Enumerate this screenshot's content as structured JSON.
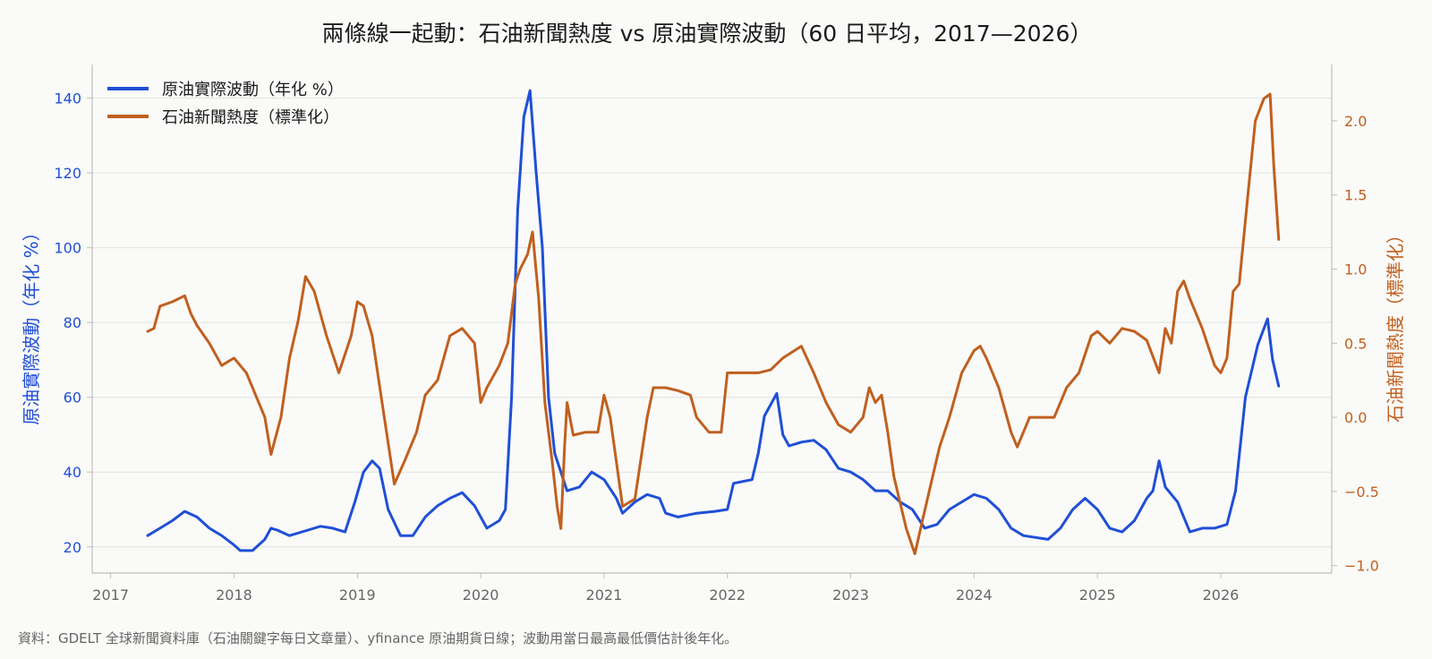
{
  "colors": {
    "volatility": "#1f4fd6",
    "news": "#c0601f",
    "grid": "#e2e2e2",
    "axis": "#bdbdbd",
    "background": "#fafaf8"
  },
  "chart_data": {
    "type": "line",
    "title": "兩條線一起動：石油新聞熱度 vs 原油實際波動（60 日平均，2017—2026）",
    "ylabel_left": "原油實際波動（年化 %）",
    "ylabel_right": "石油新聞熱度（標準化）",
    "source": "資料：GDELT 全球新聞資料庫（石油關鍵字每日文章量）、yfinance 原油期貨日線；波動用當日最高最低價估計後年化。",
    "x_ticks": [
      "2017",
      "2018",
      "2019",
      "2020",
      "2021",
      "2022",
      "2023",
      "2024",
      "2025",
      "2026"
    ],
    "xlim": [
      2016.85,
      2026.9
    ],
    "ylim_left": [
      13,
      149
    ],
    "yticks_left": [
      20,
      40,
      60,
      80,
      100,
      120,
      140
    ],
    "ylim_right": [
      -1.05,
      2.38
    ],
    "yticks_right": [
      "−1.0",
      "−0.5",
      "0.0",
      "0.5",
      "1.0",
      "1.5",
      "2.0"
    ],
    "yticks_right_values": [
      -1.0,
      -0.5,
      0.0,
      0.5,
      1.0,
      1.5,
      2.0
    ],
    "grid": "horizontal",
    "legend_position": "top-left",
    "series": [
      {
        "name": "原油實際波動（年化 %）",
        "axis": "left",
        "points": [
          [
            2017.3,
            23
          ],
          [
            2017.4,
            25
          ],
          [
            2017.5,
            27
          ],
          [
            2017.6,
            29.5
          ],
          [
            2017.7,
            28
          ],
          [
            2017.8,
            25
          ],
          [
            2017.9,
            23
          ],
          [
            2018.0,
            20.5
          ],
          [
            2018.05,
            19
          ],
          [
            2018.15,
            19
          ],
          [
            2018.25,
            22
          ],
          [
            2018.3,
            25
          ],
          [
            2018.35,
            24.5
          ],
          [
            2018.45,
            23
          ],
          [
            2018.6,
            24.5
          ],
          [
            2018.7,
            25.5
          ],
          [
            2018.8,
            25
          ],
          [
            2018.9,
            24
          ],
          [
            2018.98,
            32
          ],
          [
            2019.05,
            40
          ],
          [
            2019.12,
            43
          ],
          [
            2019.18,
            41
          ],
          [
            2019.25,
            30
          ],
          [
            2019.35,
            23
          ],
          [
            2019.45,
            23
          ],
          [
            2019.55,
            28
          ],
          [
            2019.65,
            31
          ],
          [
            2019.75,
            33
          ],
          [
            2019.85,
            34.5
          ],
          [
            2019.95,
            31
          ],
          [
            2020.05,
            25
          ],
          [
            2020.15,
            27
          ],
          [
            2020.2,
            30
          ],
          [
            2020.25,
            60
          ],
          [
            2020.3,
            110
          ],
          [
            2020.35,
            135
          ],
          [
            2020.4,
            142
          ],
          [
            2020.45,
            120
          ],
          [
            2020.5,
            100
          ],
          [
            2020.55,
            60
          ],
          [
            2020.6,
            45
          ],
          [
            2020.7,
            35
          ],
          [
            2020.8,
            36
          ],
          [
            2020.9,
            40
          ],
          [
            2021.0,
            38
          ],
          [
            2021.1,
            33
          ],
          [
            2021.15,
            29
          ],
          [
            2021.25,
            32
          ],
          [
            2021.35,
            34
          ],
          [
            2021.45,
            33
          ],
          [
            2021.5,
            29
          ],
          [
            2021.6,
            28
          ],
          [
            2021.75,
            29
          ],
          [
            2021.9,
            29.5
          ],
          [
            2022.0,
            30
          ],
          [
            2022.05,
            37
          ],
          [
            2022.2,
            38
          ],
          [
            2022.25,
            45
          ],
          [
            2022.3,
            55
          ],
          [
            2022.4,
            61
          ],
          [
            2022.45,
            50
          ],
          [
            2022.5,
            47
          ],
          [
            2022.6,
            48
          ],
          [
            2022.7,
            48.5
          ],
          [
            2022.8,
            46
          ],
          [
            2022.9,
            41
          ],
          [
            2023.0,
            40
          ],
          [
            2023.1,
            38
          ],
          [
            2023.2,
            35
          ],
          [
            2023.3,
            35
          ],
          [
            2023.4,
            32
          ],
          [
            2023.5,
            30
          ],
          [
            2023.6,
            25
          ],
          [
            2023.7,
            26
          ],
          [
            2023.8,
            30
          ],
          [
            2023.9,
            32
          ],
          [
            2024.0,
            34
          ],
          [
            2024.1,
            33
          ],
          [
            2024.2,
            30
          ],
          [
            2024.3,
            25
          ],
          [
            2024.4,
            23
          ],
          [
            2024.5,
            22.5
          ],
          [
            2024.6,
            22
          ],
          [
            2024.7,
            25
          ],
          [
            2024.8,
            30
          ],
          [
            2024.9,
            33
          ],
          [
            2025.0,
            30
          ],
          [
            2025.1,
            25
          ],
          [
            2025.2,
            24
          ],
          [
            2025.3,
            27
          ],
          [
            2025.4,
            33
          ],
          [
            2025.45,
            35
          ],
          [
            2025.5,
            43
          ],
          [
            2025.55,
            36
          ],
          [
            2025.65,
            32
          ],
          [
            2025.7,
            28
          ],
          [
            2025.75,
            24
          ],
          [
            2025.85,
            25
          ],
          [
            2025.95,
            25
          ],
          [
            2026.05,
            26
          ],
          [
            2026.12,
            35
          ],
          [
            2026.2,
            60
          ],
          [
            2026.3,
            74
          ],
          [
            2026.38,
            81
          ],
          [
            2026.42,
            70
          ],
          [
            2026.47,
            63
          ]
        ]
      },
      {
        "name": "石油新聞熱度（標準化）",
        "axis": "right",
        "points": [
          [
            2017.3,
            0.58
          ],
          [
            2017.35,
            0.6
          ],
          [
            2017.4,
            0.75
          ],
          [
            2017.5,
            0.78
          ],
          [
            2017.6,
            0.82
          ],
          [
            2017.65,
            0.7
          ],
          [
            2017.7,
            0.62
          ],
          [
            2017.8,
            0.5
          ],
          [
            2017.9,
            0.35
          ],
          [
            2018.0,
            0.4
          ],
          [
            2018.1,
            0.3
          ],
          [
            2018.15,
            0.2
          ],
          [
            2018.25,
            0.0
          ],
          [
            2018.3,
            -0.25
          ],
          [
            2018.38,
            0.0
          ],
          [
            2018.45,
            0.4
          ],
          [
            2018.52,
            0.65
          ],
          [
            2018.58,
            0.95
          ],
          [
            2018.65,
            0.85
          ],
          [
            2018.75,
            0.55
          ],
          [
            2018.85,
            0.3
          ],
          [
            2018.95,
            0.55
          ],
          [
            2019.0,
            0.78
          ],
          [
            2019.05,
            0.75
          ],
          [
            2019.12,
            0.55
          ],
          [
            2019.2,
            0.1
          ],
          [
            2019.3,
            -0.45
          ],
          [
            2019.38,
            -0.3
          ],
          [
            2019.48,
            -0.1
          ],
          [
            2019.55,
            0.15
          ],
          [
            2019.65,
            0.25
          ],
          [
            2019.75,
            0.55
          ],
          [
            2019.85,
            0.6
          ],
          [
            2019.95,
            0.5
          ],
          [
            2020.0,
            0.1
          ],
          [
            2020.05,
            0.2
          ],
          [
            2020.15,
            0.35
          ],
          [
            2020.22,
            0.5
          ],
          [
            2020.28,
            0.9
          ],
          [
            2020.32,
            1.0
          ],
          [
            2020.38,
            1.1
          ],
          [
            2020.42,
            1.25
          ],
          [
            2020.47,
            0.8
          ],
          [
            2020.52,
            0.1
          ],
          [
            2020.58,
            -0.3
          ],
          [
            2020.62,
            -0.6
          ],
          [
            2020.65,
            -0.75
          ],
          [
            2020.68,
            -0.2
          ],
          [
            2020.7,
            0.1
          ],
          [
            2020.75,
            -0.12
          ],
          [
            2020.85,
            -0.1
          ],
          [
            2020.95,
            -0.1
          ],
          [
            2021.0,
            0.15
          ],
          [
            2021.05,
            0.0
          ],
          [
            2021.1,
            -0.3
          ],
          [
            2021.15,
            -0.6
          ],
          [
            2021.25,
            -0.55
          ],
          [
            2021.35,
            0.0
          ],
          [
            2021.4,
            0.2
          ],
          [
            2021.5,
            0.2
          ],
          [
            2021.6,
            0.18
          ],
          [
            2021.7,
            0.15
          ],
          [
            2021.75,
            0.0
          ],
          [
            2021.85,
            -0.1
          ],
          [
            2021.95,
            -0.1
          ],
          [
            2022.0,
            0.3
          ],
          [
            2022.1,
            0.3
          ],
          [
            2022.25,
            0.3
          ],
          [
            2022.35,
            0.32
          ],
          [
            2022.45,
            0.4
          ],
          [
            2022.6,
            0.48
          ],
          [
            2022.7,
            0.3
          ],
          [
            2022.8,
            0.1
          ],
          [
            2022.9,
            -0.05
          ],
          [
            2023.0,
            -0.1
          ],
          [
            2023.1,
            0.0
          ],
          [
            2023.15,
            0.2
          ],
          [
            2023.2,
            0.1
          ],
          [
            2023.25,
            0.15
          ],
          [
            2023.3,
            -0.1
          ],
          [
            2023.35,
            -0.4
          ],
          [
            2023.45,
            -0.75
          ],
          [
            2023.52,
            -0.92
          ],
          [
            2023.58,
            -0.7
          ],
          [
            2023.65,
            -0.45
          ],
          [
            2023.72,
            -0.2
          ],
          [
            2023.8,
            0.0
          ],
          [
            2023.9,
            0.3
          ],
          [
            2024.0,
            0.45
          ],
          [
            2024.05,
            0.48
          ],
          [
            2024.1,
            0.4
          ],
          [
            2024.2,
            0.2
          ],
          [
            2024.3,
            -0.1
          ],
          [
            2024.35,
            -0.2
          ],
          [
            2024.45,
            0.0
          ],
          [
            2024.55,
            0.0
          ],
          [
            2024.65,
            0.0
          ],
          [
            2024.75,
            0.2
          ],
          [
            2024.85,
            0.3
          ],
          [
            2024.95,
            0.55
          ],
          [
            2025.0,
            0.58
          ],
          [
            2025.1,
            0.5
          ],
          [
            2025.2,
            0.6
          ],
          [
            2025.3,
            0.58
          ],
          [
            2025.4,
            0.52
          ],
          [
            2025.5,
            0.3
          ],
          [
            2025.55,
            0.6
          ],
          [
            2025.6,
            0.5
          ],
          [
            2025.65,
            0.85
          ],
          [
            2025.7,
            0.92
          ],
          [
            2025.75,
            0.8
          ],
          [
            2025.85,
            0.6
          ],
          [
            2025.95,
            0.35
          ],
          [
            2026.0,
            0.3
          ],
          [
            2026.05,
            0.4
          ],
          [
            2026.1,
            0.85
          ],
          [
            2026.15,
            0.9
          ],
          [
            2026.22,
            1.5
          ],
          [
            2026.28,
            2.0
          ],
          [
            2026.35,
            2.15
          ],
          [
            2026.4,
            2.18
          ],
          [
            2026.43,
            1.7
          ],
          [
            2026.47,
            1.2
          ]
        ]
      }
    ]
  }
}
